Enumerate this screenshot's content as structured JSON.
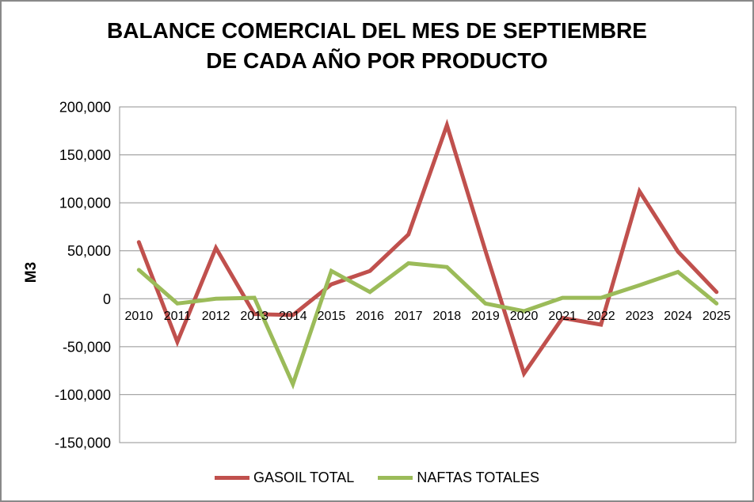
{
  "frame": {
    "background_color": "#FFFFFF",
    "border_color": "#898989"
  },
  "chart_data": {
    "type": "line",
    "title": "BALANCE COMERCIAL DEL MES DE SEPTIEMBRE DE CADA AÑO POR PRODUCTO",
    "title_lines": [
      "BALANCE COMERCIAL DEL MES DE SEPTIEMBRE",
      "DE CADA AÑO POR PRODUCTO"
    ],
    "xlabel": "",
    "ylabel": "M3",
    "categories": [
      "2010",
      "2011",
      "2012",
      "2013",
      "2014",
      "2015",
      "2016",
      "2017",
      "2018",
      "2019",
      "2020",
      "2021",
      "2022",
      "2023",
      "2024",
      "2025"
    ],
    "series": [
      {
        "name": "GASOIL TOTAL",
        "color": "#C0504D",
        "values": [
          59000,
          -45000,
          53000,
          -16000,
          -17000,
          15000,
          29000,
          67000,
          181000,
          50000,
          -78000,
          -20000,
          -27000,
          112000,
          49000,
          7000
        ]
      },
      {
        "name": "NAFTAS TOTALES",
        "color": "#9BBB59",
        "values": [
          30000,
          -5000,
          0,
          1000,
          -89000,
          29000,
          7000,
          37000,
          33000,
          -5000,
          -13000,
          1000,
          1000,
          14000,
          28000,
          -5000
        ]
      }
    ],
    "y_axis": {
      "min": -150000,
      "max": 200000,
      "tick_step": 50000,
      "tick_values": [
        200000,
        150000,
        100000,
        50000,
        0,
        -50000,
        -100000,
        -150000
      ],
      "tick_labels": [
        "200,000",
        "150,000",
        "100,000",
        "50,000",
        "0",
        "-50,000",
        "-100,000",
        "-150,000"
      ]
    },
    "grid": "on",
    "grid_color": "#919191",
    "text_color": "#000000",
    "legend_position": "bottom"
  }
}
